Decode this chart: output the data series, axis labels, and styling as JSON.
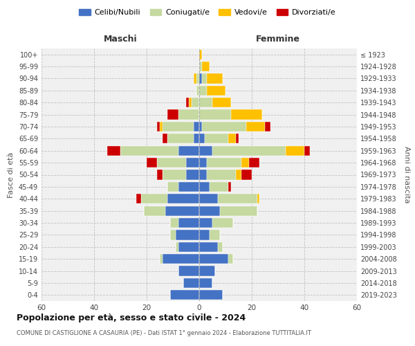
{
  "age_groups": [
    "0-4",
    "5-9",
    "10-14",
    "15-19",
    "20-24",
    "25-29",
    "30-34",
    "35-39",
    "40-44",
    "45-49",
    "50-54",
    "55-59",
    "60-64",
    "65-69",
    "70-74",
    "75-79",
    "80-84",
    "85-89",
    "90-94",
    "95-99",
    "100+"
  ],
  "birth_years": [
    "2019-2023",
    "2014-2018",
    "2009-2013",
    "2004-2008",
    "1999-2003",
    "1994-1998",
    "1989-1993",
    "1984-1988",
    "1979-1983",
    "1974-1978",
    "1969-1973",
    "1964-1968",
    "1959-1963",
    "1954-1958",
    "1949-1953",
    "1944-1948",
    "1939-1943",
    "1934-1938",
    "1929-1933",
    "1924-1928",
    "≤ 1923"
  ],
  "colors": {
    "celibi": "#4472c4",
    "coniugati": "#c5d9a0",
    "vedovi": "#ffc000",
    "divorziati": "#cc0000"
  },
  "maschi": {
    "celibi": [
      11,
      6,
      8,
      14,
      8,
      9,
      8,
      13,
      12,
      8,
      5,
      5,
      8,
      2,
      2,
      0,
      0,
      0,
      0,
      0,
      0
    ],
    "coniugati": [
      0,
      0,
      0,
      1,
      1,
      2,
      3,
      8,
      10,
      4,
      9,
      11,
      22,
      10,
      12,
      8,
      3,
      1,
      1,
      0,
      0
    ],
    "vedovi": [
      0,
      0,
      0,
      0,
      0,
      0,
      0,
      0,
      0,
      0,
      0,
      0,
      0,
      0,
      1,
      0,
      1,
      0,
      1,
      0,
      0
    ],
    "divorziati": [
      0,
      0,
      0,
      0,
      0,
      0,
      0,
      0,
      2,
      0,
      2,
      4,
      5,
      2,
      1,
      4,
      1,
      0,
      0,
      0,
      0
    ]
  },
  "femmine": {
    "celibi": [
      9,
      5,
      6,
      11,
      7,
      4,
      5,
      8,
      7,
      4,
      3,
      3,
      5,
      2,
      1,
      0,
      0,
      0,
      1,
      0,
      0
    ],
    "coniugati": [
      0,
      0,
      0,
      2,
      2,
      4,
      8,
      14,
      15,
      7,
      11,
      13,
      28,
      9,
      17,
      12,
      5,
      3,
      2,
      1,
      0
    ],
    "vedovi": [
      0,
      0,
      0,
      0,
      0,
      0,
      0,
      0,
      1,
      0,
      2,
      3,
      7,
      3,
      7,
      12,
      7,
      7,
      6,
      3,
      1
    ],
    "divorziati": [
      0,
      0,
      0,
      0,
      0,
      0,
      0,
      0,
      0,
      1,
      4,
      4,
      2,
      1,
      2,
      0,
      0,
      0,
      0,
      0,
      0
    ]
  },
  "title": "Popolazione per età, sesso e stato civile - 2024",
  "subtitle": "COMUNE DI CASTIGLIONE A CASAURIA (PE) - Dati ISTAT 1° gennaio 2024 - Elaborazione TUTTITALIA.IT",
  "xlabel_left": "Maschi",
  "xlabel_right": "Femmine",
  "ylabel_left": "Fasce di età",
  "ylabel_right": "Anni di nascita",
  "legend_labels": [
    "Celibi/Nubili",
    "Coniugati/e",
    "Vedovi/e",
    "Divorziati/e"
  ],
  "xlim": 60,
  "background_color": "#ffffff",
  "grid_color": "#cccccc"
}
